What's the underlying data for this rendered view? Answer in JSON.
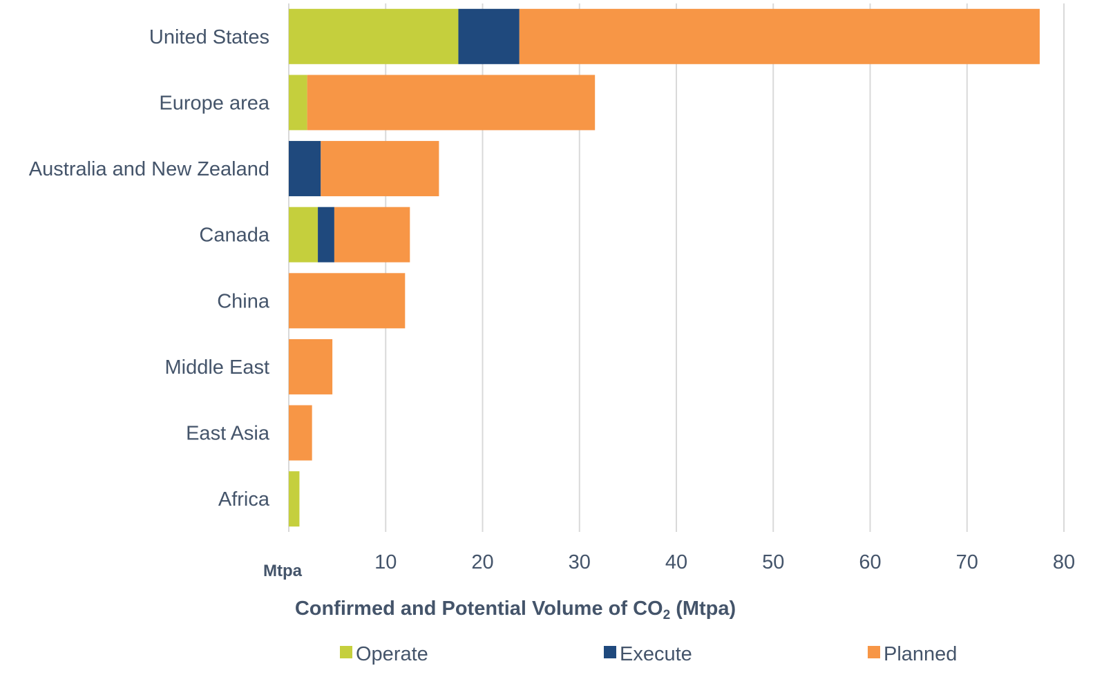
{
  "chart_data": {
    "type": "bar",
    "orientation": "horizontal",
    "stacked": true,
    "categories": [
      "United States",
      "Europe area",
      "Australia and New Zealand",
      "Canada",
      "China",
      "Middle East",
      "East Asia",
      "Africa"
    ],
    "series": [
      {
        "name": "Operate",
        "color": "#C5CF3D",
        "values": [
          17.5,
          1.9,
          0,
          3.0,
          0,
          0,
          0,
          1.1
        ]
      },
      {
        "name": "Execute",
        "color": "#1F497D",
        "values": [
          6.3,
          0,
          3.3,
          1.7,
          0,
          0,
          0,
          0
        ]
      },
      {
        "name": "Planned",
        "color": "#F79646",
        "values": [
          53.7,
          29.7,
          12.2,
          7.8,
          12.0,
          4.5,
          2.4,
          0
        ]
      }
    ],
    "xlim": [
      0,
      80
    ],
    "xticks": [
      10,
      20,
      30,
      40,
      50,
      60,
      70,
      80
    ],
    "xticks_label_text": [
      "10",
      "20",
      "30",
      "40",
      "50",
      "60",
      "70",
      "80"
    ],
    "unit_label": "Mtpa",
    "xlabel_main": "Confirmed and Potential Volume of CO",
    "xlabel_sub": "2",
    "xlabel_tail": " (Mtpa)",
    "grid": "vertical",
    "gridline_color": "#D9D9D9",
    "text_color": "#44546A",
    "legend_position": "bottom"
  }
}
